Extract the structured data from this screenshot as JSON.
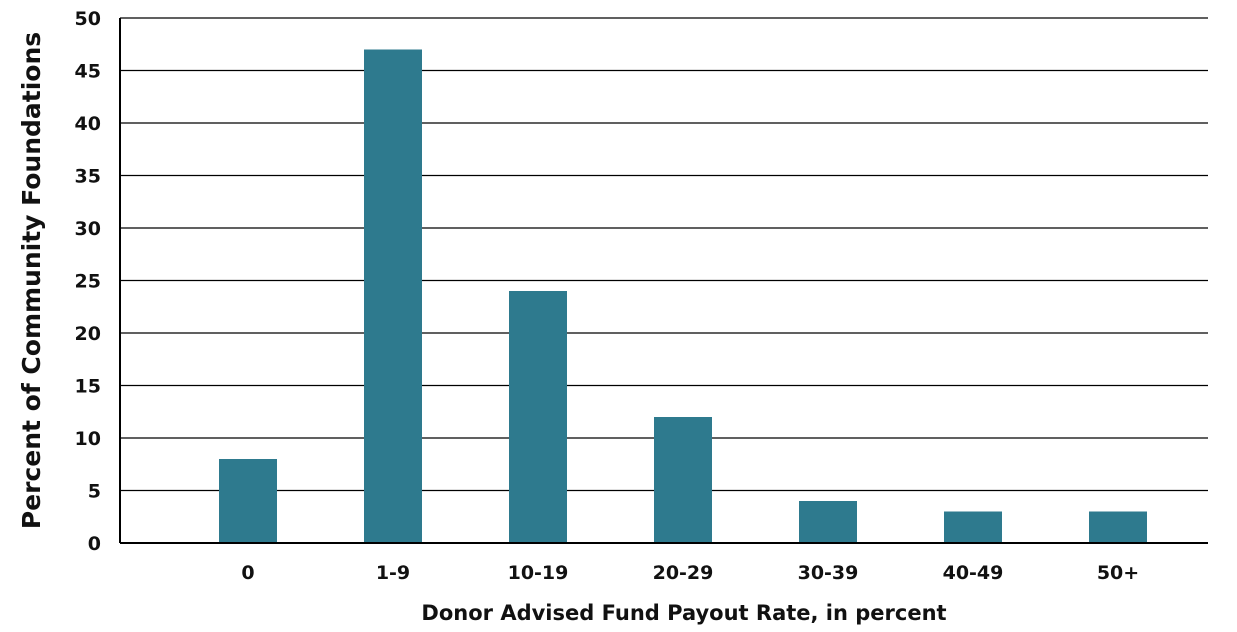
{
  "chart_data": {
    "type": "bar",
    "title": "",
    "xlabel": "Donor Advised Fund Payout Rate, in percent",
    "ylabel": "Percent of Community Foundations",
    "categories": [
      "0",
      "1-9",
      "10-19",
      "20-29",
      "30-39",
      "40-49",
      "50+"
    ],
    "values": [
      8,
      47,
      24,
      12,
      4,
      3,
      3
    ],
    "ylim": [
      0,
      50
    ],
    "yticks": [
      0,
      5,
      10,
      15,
      20,
      25,
      30,
      35,
      40,
      45,
      50
    ],
    "grid": true,
    "legend": "none",
    "bar_color": "#2e7a8e"
  }
}
